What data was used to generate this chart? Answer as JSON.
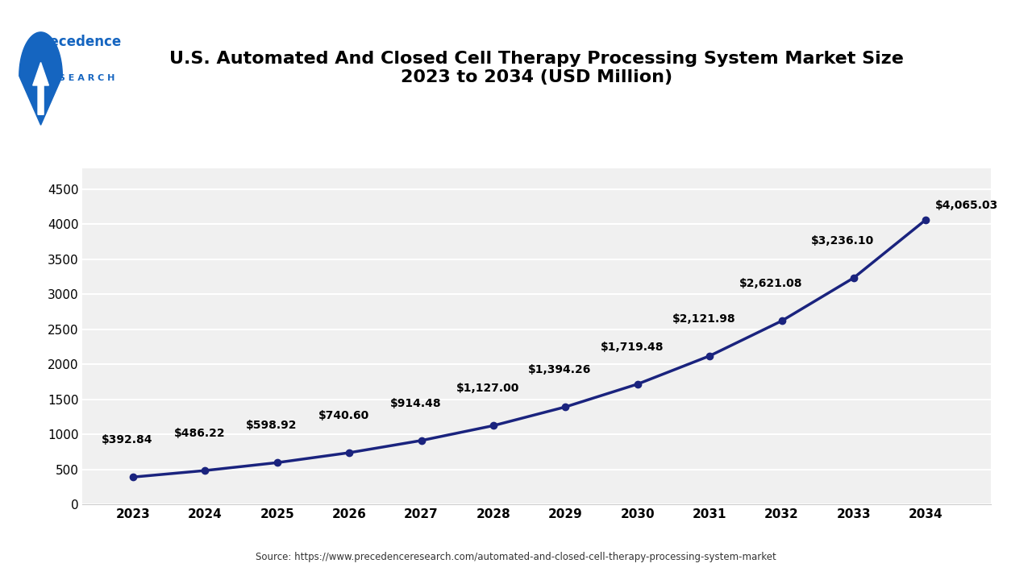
{
  "title_line1": "U.S. Automated And Closed Cell Therapy Processing System Market Size",
  "title_line2": "2023 to 2034 (USD Million)",
  "years": [
    2023,
    2024,
    2025,
    2026,
    2027,
    2028,
    2029,
    2030,
    2031,
    2032,
    2033,
    2034
  ],
  "values": [
    392.84,
    486.22,
    598.92,
    740.6,
    914.48,
    1127.0,
    1394.26,
    1719.48,
    2121.98,
    2621.08,
    3236.1,
    4065.03
  ],
  "labels": [
    "$392.84",
    "$486.22",
    "$598.92",
    "$740.60",
    "$914.48",
    "$1,127.00",
    "$1,394.26",
    "$1,719.48",
    "$2,121.98",
    "$2,621.08",
    "$3,236.10",
    "$4,065.03"
  ],
  "line_color": "#1a237e",
  "marker_color": "#1a237e",
  "background_color": "#ffffff",
  "plot_bg_color": "#f0f0f0",
  "ylim": [
    0,
    4800
  ],
  "yticks": [
    0,
    500,
    1000,
    1500,
    2000,
    2500,
    3000,
    3500,
    4000,
    4500
  ],
  "source_text": "Source: https://www.precedenceresearch.com/automated-and-closed-cell-therapy-processing-system-market",
  "title_fontsize": 16,
  "label_fontsize": 10,
  "tick_fontsize": 11
}
